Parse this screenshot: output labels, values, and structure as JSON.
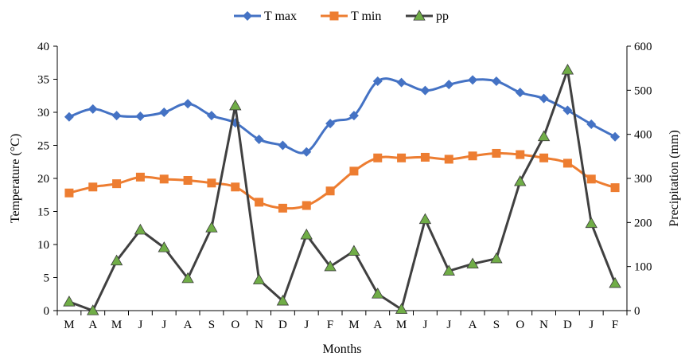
{
  "chart_data": {
    "type": "line",
    "title": "",
    "xlabel": "Months",
    "ylabel_left": "Temperature (°C)",
    "ylabel_right": "Precipitation (mm)",
    "categories": [
      "M",
      "A",
      "M",
      "J",
      "J",
      "A",
      "S",
      "O",
      "N",
      "D",
      "J",
      "F",
      "M",
      "A",
      "M",
      "J",
      "J",
      "A",
      "S",
      "O",
      "N",
      "D",
      "J",
      "F"
    ],
    "y_left_lim": [
      0,
      40
    ],
    "y_left_ticks": [
      "0",
      "5",
      "10",
      "15",
      "20",
      "25",
      "30",
      "35",
      "40"
    ],
    "y_right_lim": [
      0,
      600
    ],
    "y_right_ticks": [
      "0",
      "100",
      "200",
      "300",
      "400",
      "500",
      "600"
    ],
    "grid": false,
    "legend_position": "top-center",
    "series": [
      {
        "name": "T max",
        "axis": "left",
        "color": "#4472C4",
        "marker": "diamond",
        "smooth": true,
        "values": [
          29.3,
          30.5,
          29.5,
          29.4,
          30.0,
          31.3,
          29.5,
          28.4,
          25.9,
          25.0,
          24.0,
          28.3,
          29.5,
          34.7,
          34.5,
          33.3,
          34.2,
          34.9,
          34.7,
          33.0,
          32.1,
          30.3,
          28.2,
          26.3
        ]
      },
      {
        "name": "T min",
        "axis": "left",
        "color": "#ED7D31",
        "marker": "square",
        "smooth": true,
        "values": [
          17.8,
          18.7,
          19.2,
          20.2,
          19.9,
          19.7,
          19.3,
          18.7,
          16.4,
          15.5,
          15.9,
          18.1,
          21.1,
          23.1,
          23.1,
          23.2,
          22.9,
          23.4,
          23.8,
          23.6,
          23.1,
          22.3,
          19.9,
          18.6
        ]
      },
      {
        "name": "pp",
        "axis": "right",
        "color": "#404040",
        "marker_color": "#70AD47",
        "marker": "triangle",
        "smooth": false,
        "values": [
          20,
          0,
          113,
          183,
          143,
          73,
          188,
          465,
          70,
          22,
          172,
          100,
          135,
          38,
          3,
          207,
          90,
          106,
          118,
          293,
          395,
          546,
          198,
          62
        ]
      }
    ]
  }
}
